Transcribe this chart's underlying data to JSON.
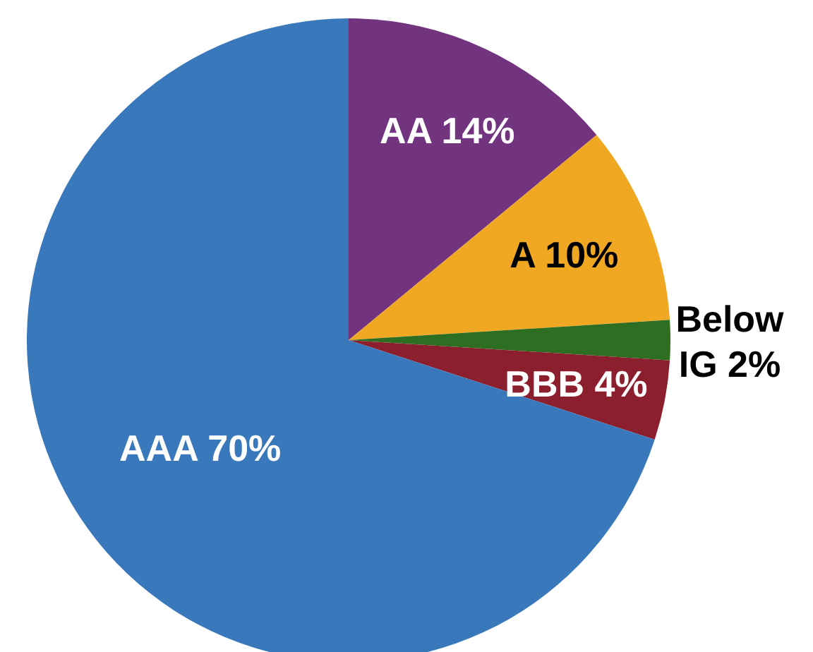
{
  "chart_data": {
    "type": "pie",
    "categories": [
      "AA",
      "A",
      "Below IG",
      "BBB",
      "AAA"
    ],
    "values": [
      14,
      10,
      2,
      4,
      70
    ],
    "value_labels": [
      "14%",
      "10%",
      "2%",
      "4%",
      "70%"
    ],
    "colors": [
      "#72337f",
      "#f0a823",
      "#2e6e23",
      "#8b1f2e",
      "#3a78bc"
    ],
    "legend": false
  }
}
